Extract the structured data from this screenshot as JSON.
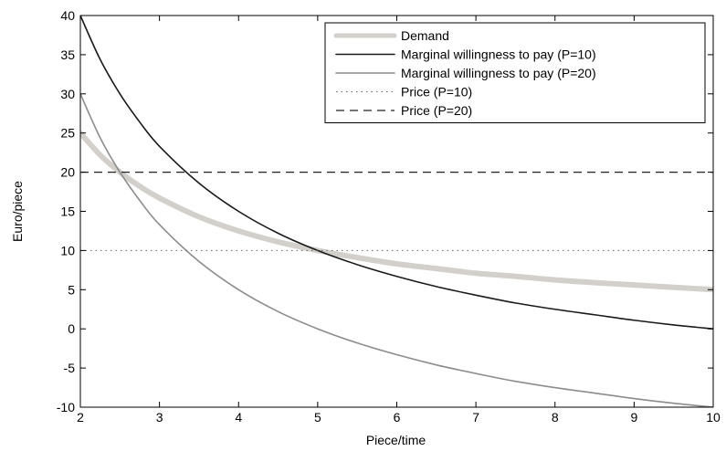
{
  "chart_data": {
    "type": "line",
    "title": "",
    "xlabel": "Piece/time",
    "ylabel": "Euro/piece",
    "xlim": [
      2,
      10
    ],
    "ylim": [
      -10,
      40
    ],
    "xticks": [
      2,
      3,
      4,
      5,
      6,
      7,
      8,
      9,
      10
    ],
    "yticks": [
      -10,
      -5,
      0,
      5,
      10,
      15,
      20,
      25,
      30,
      35,
      40
    ],
    "grid": false,
    "legend_position": "top-right",
    "series": [
      {
        "name": "Demand",
        "color": "#d3d0cb",
        "style": "thick",
        "x": [
          2,
          2.25,
          2.5,
          2.75,
          3,
          3.5,
          4,
          4.5,
          5,
          5.5,
          6,
          6.5,
          7,
          7.5,
          8,
          8.5,
          9,
          9.5,
          10
        ],
        "y": [
          25,
          22.2,
          20,
          18.2,
          16.7,
          14.3,
          12.5,
          11.1,
          10,
          9.1,
          8.3,
          7.7,
          7.1,
          6.7,
          6.25,
          5.9,
          5.6,
          5.3,
          5
        ]
      },
      {
        "name": "Marginal willingness to pay (P=10)",
        "color": "#1a1a1a",
        "style": "solid",
        "x": [
          2,
          2.25,
          2.5,
          2.75,
          3,
          3.5,
          4,
          4.5,
          5,
          5.5,
          6,
          6.5,
          7,
          7.5,
          8,
          8.5,
          9,
          9.5,
          10
        ],
        "y": [
          40,
          34.4,
          30,
          26.4,
          23.3,
          18.6,
          15,
          12.2,
          10,
          8.2,
          6.7,
          5.4,
          4.3,
          3.3,
          2.5,
          1.8,
          1.1,
          0.5,
          0
        ]
      },
      {
        "name": "Marginal willingness to pay (P=20)",
        "color": "#8c8c8c",
        "style": "solid",
        "x": [
          2,
          2.25,
          2.5,
          2.75,
          3,
          3.5,
          4,
          4.5,
          5,
          5.5,
          6,
          6.5,
          7,
          7.5,
          8,
          8.5,
          9,
          9.5,
          10
        ],
        "y": [
          30,
          24.4,
          20,
          16.4,
          13.3,
          8.6,
          5,
          2.2,
          0,
          -1.8,
          -3.3,
          -4.6,
          -5.7,
          -6.7,
          -7.5,
          -8.2,
          -8.9,
          -9.5,
          -10
        ]
      },
      {
        "name": "Price (P=10)",
        "color": "#666666",
        "style": "dotted",
        "x": [
          2,
          10
        ],
        "y": [
          10,
          10
        ]
      },
      {
        "name": "Price (P=20)",
        "color": "#222222",
        "style": "dashed",
        "x": [
          2,
          10
        ],
        "y": [
          20,
          20
        ]
      }
    ]
  }
}
